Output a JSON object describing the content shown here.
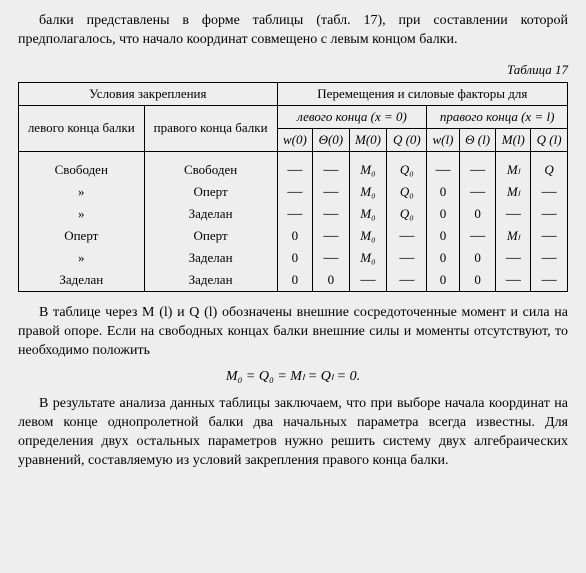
{
  "intro": "балки представлены в форме таблицы (табл. 17), при составлении которой предполагалось, что начало координат совмещено с левым концом балки.",
  "table_label": "Таблица 17",
  "head": {
    "conditions": "Условия закрепления",
    "factors": "Перемещения и силовые факторы для",
    "left_end": "левого конца балки",
    "right_end": "правого конца балки",
    "left_x": "левого конца  (x = 0)",
    "right_x": "правого конца  (x = l)",
    "w0": "w(0)",
    "t0": "Θ(0)",
    "m0": "M(0)",
    "q0": "Q (0)",
    "wl": "w(l)",
    "tl": "Θ (l)",
    "ml": "M(l)",
    "ql": "Q (l)"
  },
  "rows": [
    {
      "l": "Свободен",
      "r": "Свободен",
      "c": [
        "—",
        "—",
        "M₀",
        "Q₀",
        "—",
        "—",
        "Mₗ",
        "Q"
      ]
    },
    {
      "l": "»",
      "r": "Оперт",
      "c": [
        "—",
        "—",
        "M₀",
        "Q₀",
        "0",
        "—",
        "Mₗ",
        "—"
      ]
    },
    {
      "l": "»",
      "r": "Заделан",
      "c": [
        "—",
        "—",
        "M₀",
        "Q₀",
        "0",
        "0",
        "—",
        "—"
      ]
    },
    {
      "l": "Оперт",
      "r": "Оперт",
      "c": [
        "0",
        "—",
        "M₀",
        "—",
        "0",
        "—",
        "Mₗ",
        "—"
      ]
    },
    {
      "l": "»",
      "r": "Заделан",
      "c": [
        "0",
        "—",
        "M₀",
        "—",
        "0",
        "0",
        "—",
        "—"
      ]
    },
    {
      "l": "Заделан",
      "r": "Заделан",
      "c": [
        "0",
        "0",
        "—",
        "—",
        "0",
        "0",
        "—",
        "—"
      ]
    }
  ],
  "para1": "В таблице через M (l) и Q (l) обозначены внешние сосредоточенные момент и сила на правой опоре. Если на свободных концах балки внешние силы и моменты отсутствуют, то необходимо положить",
  "equation": "M₀ = Q₀ = Mₗ = Qₗ = 0.",
  "para2": "В результате анализа данных таблицы заключаем, что при выборе начала координат на левом конце однопролетной балки два начальных параметра всегда известны. Для определения двух остальных параметров нужно решить систему двух алгебраических уравнений, составляемую из условий закрепления правого конца балки."
}
